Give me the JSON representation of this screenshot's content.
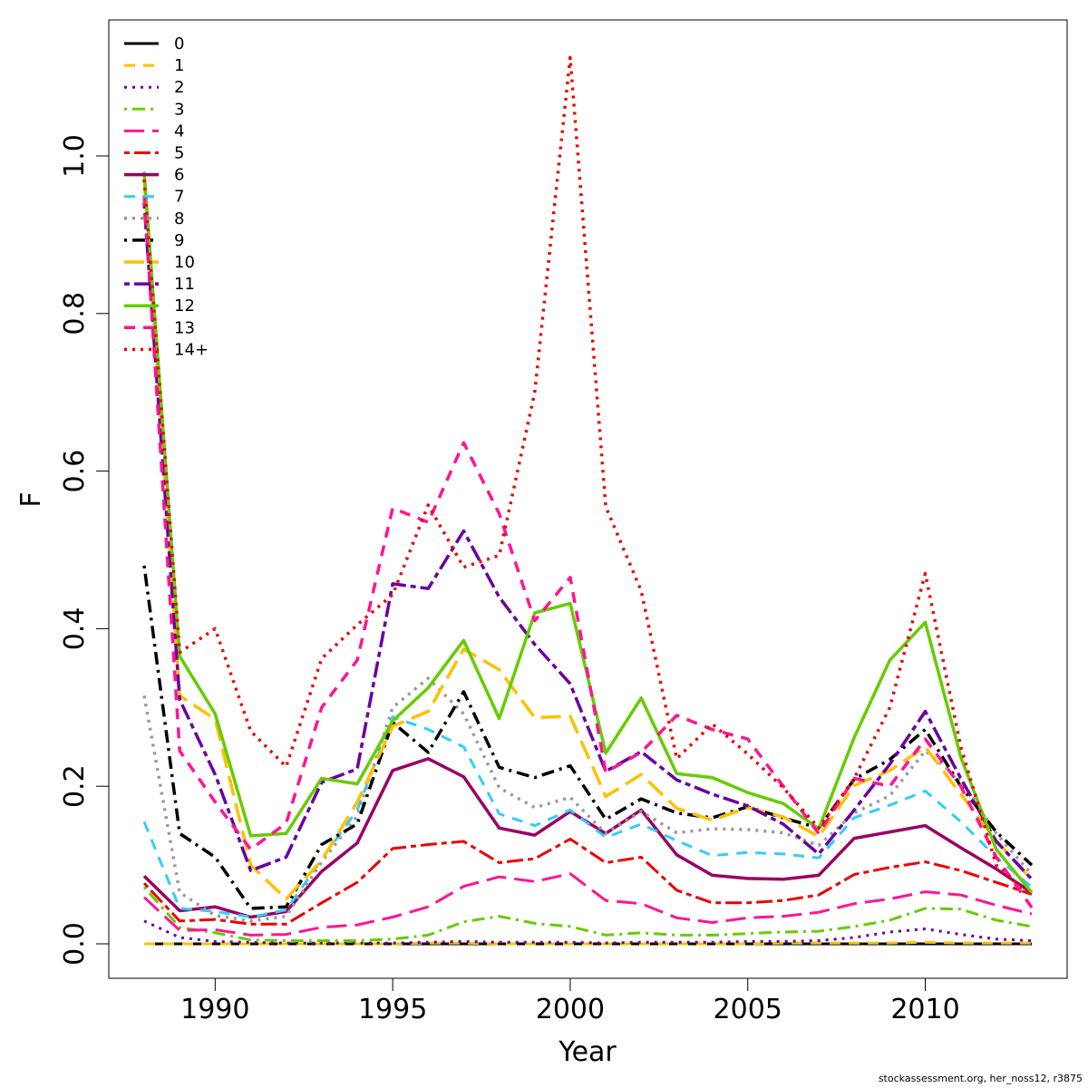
{
  "chart_data": {
    "type": "line",
    "xlabel": "Year",
    "ylabel": "F",
    "xlim": [
      1988,
      2013
    ],
    "ylim": [
      0,
      1.2
    ],
    "x_ticks": [
      1990,
      1995,
      2000,
      2005,
      2010
    ],
    "y_ticks": [
      "0.0",
      "0.2",
      "0.4",
      "0.6",
      "0.8",
      "1.0"
    ],
    "grid": false,
    "legend_position": "top-left",
    "x": [
      1988,
      1989,
      1990,
      1991,
      1992,
      1993,
      1994,
      1995,
      1996,
      1997,
      1998,
      1999,
      2000,
      2001,
      2002,
      2003,
      2004,
      2005,
      2006,
      2007,
      2008,
      2009,
      2010,
      2011,
      2012,
      2013
    ],
    "series": [
      {
        "name": "0",
        "color": "#000000",
        "dash": "solid",
        "width": 3,
        "values": [
          0,
          0,
          0,
          0,
          0,
          0,
          0,
          0,
          0,
          0,
          0,
          0,
          0,
          0,
          0,
          0,
          0,
          0,
          0,
          0,
          0,
          0,
          0,
          0,
          0,
          0
        ]
      },
      {
        "name": "1",
        "color": "#FFC000",
        "dash": "dashed",
        "width": 3,
        "values": [
          0,
          0,
          0,
          0,
          0,
          0,
          0,
          0,
          0.001,
          0.001,
          0,
          0,
          0,
          0,
          0,
          0,
          0,
          0,
          0.001,
          0.001,
          0.001,
          0.001,
          0.002,
          0.001,
          0.001,
          0.001
        ]
      },
      {
        "name": "2",
        "color": "#6A00A0",
        "dash": "dotted",
        "width": 3,
        "values": [
          0.029,
          0.008,
          0.003,
          0.002,
          0.001,
          0.001,
          0.001,
          0.001,
          0.002,
          0.003,
          0.002,
          0.002,
          0.002,
          0.001,
          0.002,
          0.002,
          0.002,
          0.003,
          0.003,
          0.004,
          0.008,
          0.015,
          0.019,
          0.012,
          0.006,
          0.004
        ]
      },
      {
        "name": "3",
        "color": "#66CC00",
        "dash": "dotdash",
        "width": 3,
        "values": [
          0.072,
          0.021,
          0.014,
          0.005,
          0.004,
          0.004,
          0.004,
          0.006,
          0.011,
          0.028,
          0.035,
          0.026,
          0.022,
          0.011,
          0.014,
          0.011,
          0.011,
          0.013,
          0.015,
          0.016,
          0.022,
          0.03,
          0.045,
          0.044,
          0.03,
          0.022
        ]
      },
      {
        "name": "4",
        "color": "#FF1493",
        "dash": "longdash",
        "width": 3,
        "values": [
          0.059,
          0.017,
          0.018,
          0.011,
          0.012,
          0.021,
          0.024,
          0.034,
          0.047,
          0.073,
          0.085,
          0.079,
          0.089,
          0.055,
          0.051,
          0.033,
          0.027,
          0.033,
          0.035,
          0.04,
          0.051,
          0.057,
          0.066,
          0.062,
          0.049,
          0.038
        ]
      },
      {
        "name": "5",
        "color": "#EE0000",
        "dash": "twodash",
        "width": 3,
        "values": [
          0.077,
          0.029,
          0.031,
          0.025,
          0.025,
          0.052,
          0.078,
          0.121,
          0.126,
          0.13,
          0.103,
          0.108,
          0.133,
          0.103,
          0.11,
          0.068,
          0.052,
          0.052,
          0.055,
          0.062,
          0.088,
          0.097,
          0.104,
          0.093,
          0.078,
          0.063
        ]
      },
      {
        "name": "6",
        "color": "#990066",
        "dash": "solid",
        "width": 3.5,
        "values": [
          0.086,
          0.042,
          0.047,
          0.034,
          0.041,
          0.092,
          0.128,
          0.22,
          0.235,
          0.212,
          0.147,
          0.138,
          0.168,
          0.14,
          0.17,
          0.113,
          0.087,
          0.083,
          0.082,
          0.087,
          0.134,
          0.142,
          0.15,
          0.122,
          0.095,
          0.065
        ]
      },
      {
        "name": "7",
        "color": "#33CCFF",
        "dash": "dashed",
        "width": 3,
        "values": [
          0.155,
          0.045,
          0.041,
          0.034,
          0.043,
          0.107,
          0.17,
          0.288,
          0.272,
          0.25,
          0.165,
          0.15,
          0.17,
          0.135,
          0.152,
          0.131,
          0.112,
          0.116,
          0.114,
          0.109,
          0.16,
          0.176,
          0.194,
          0.155,
          0.11,
          0.072
        ]
      },
      {
        "name": "8",
        "color": "#999999",
        "dash": "dotted",
        "width": 3.5,
        "values": [
          0.315,
          0.065,
          0.036,
          0.029,
          0.035,
          0.104,
          0.162,
          0.3,
          0.337,
          0.292,
          0.198,
          0.173,
          0.186,
          0.14,
          0.168,
          0.141,
          0.146,
          0.145,
          0.141,
          0.125,
          0.166,
          0.188,
          0.245,
          0.208,
          0.14,
          0.088
        ]
      },
      {
        "name": "9",
        "color": "#000000",
        "dash": "dotdash",
        "width": 3.5,
        "values": [
          0.48,
          0.14,
          0.11,
          0.045,
          0.047,
          0.126,
          0.152,
          0.281,
          0.243,
          0.32,
          0.224,
          0.211,
          0.226,
          0.158,
          0.184,
          0.166,
          0.16,
          0.174,
          0.16,
          0.147,
          0.209,
          0.234,
          0.272,
          0.2,
          0.142,
          0.1
        ]
      },
      {
        "name": "10",
        "color": "#FFC000",
        "dash": "longdash",
        "width": 3.5,
        "values": [
          0.97,
          0.315,
          0.285,
          0.1,
          0.057,
          0.106,
          0.18,
          0.276,
          0.295,
          0.374,
          0.348,
          0.287,
          0.289,
          0.187,
          0.215,
          0.172,
          0.157,
          0.173,
          0.161,
          0.136,
          0.201,
          0.22,
          0.25,
          0.19,
          0.131,
          0.081
        ]
      },
      {
        "name": "11",
        "color": "#6A00A0",
        "dash": "twodash",
        "width": 3.5,
        "values": [
          0.94,
          0.31,
          0.215,
          0.093,
          0.11,
          0.205,
          0.222,
          0.457,
          0.451,
          0.524,
          0.44,
          0.38,
          0.33,
          0.219,
          0.244,
          0.208,
          0.19,
          0.175,
          0.152,
          0.114,
          0.17,
          0.228,
          0.295,
          0.21,
          0.13,
          0.082
        ]
      },
      {
        "name": "12",
        "color": "#66CC00",
        "dash": "solid",
        "width": 3.5,
        "values": [
          0.98,
          0.365,
          0.292,
          0.137,
          0.14,
          0.21,
          0.203,
          0.283,
          0.325,
          0.385,
          0.286,
          0.42,
          0.432,
          0.242,
          0.312,
          0.216,
          0.211,
          0.192,
          0.178,
          0.146,
          0.262,
          0.36,
          0.408,
          0.237,
          0.12,
          0.065
        ]
      },
      {
        "name": "13",
        "color": "#FF1493",
        "dash": "dashed",
        "width": 3.5,
        "values": [
          0.95,
          0.245,
          0.18,
          0.12,
          0.153,
          0.3,
          0.36,
          0.553,
          0.535,
          0.636,
          0.546,
          0.41,
          0.465,
          0.218,
          0.243,
          0.29,
          0.272,
          0.26,
          0.2,
          0.14,
          0.21,
          0.2,
          0.26,
          0.2,
          0.11,
          0.046
        ]
      },
      {
        "name": "14+",
        "color": "#EE0000",
        "dash": "dotted",
        "width": 3.5,
        "values": [
          0.97,
          0.37,
          0.4,
          0.27,
          0.225,
          0.362,
          0.405,
          0.443,
          0.557,
          0.478,
          0.493,
          0.7,
          1.125,
          0.555,
          0.448,
          0.235,
          0.279,
          0.241,
          0.198,
          0.147,
          0.21,
          0.3,
          0.47,
          0.25,
          0.1,
          0.06
        ]
      }
    ]
  },
  "footer": {
    "credit": "stockassessment.org, her_noss12, r3875"
  }
}
